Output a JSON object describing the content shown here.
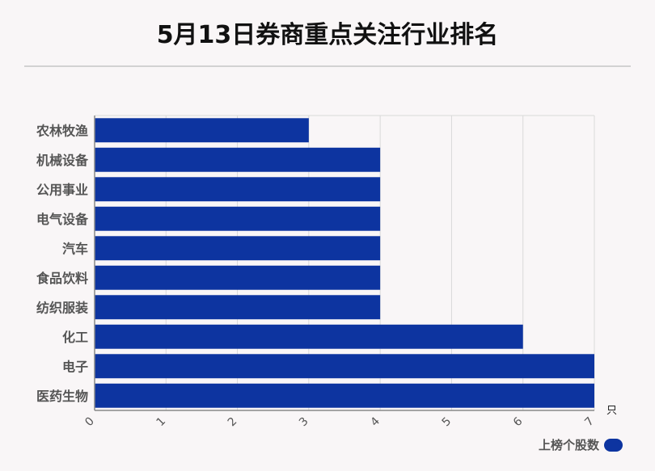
{
  "title": "5月13日券商重点关注行业排名",
  "unit": "只",
  "legend_label": "上榜个股数",
  "colors": {
    "bar": "#0d34a0",
    "grid": "#d9d9d9",
    "axis": "#888888"
  },
  "chart_data": {
    "type": "bar",
    "orientation": "horizontal",
    "title": "5月13日券商重点关注行业排名",
    "categories": [
      "农林牧渔",
      "机械设备",
      "公用事业",
      "电气设备",
      "汽车",
      "食品饮料",
      "纺织服装",
      "化工",
      "电子",
      "医药生物"
    ],
    "series": [
      {
        "name": "上榜个股数",
        "values": [
          3,
          4,
          4,
          4,
          4,
          4,
          4,
          6,
          7,
          7
        ]
      }
    ],
    "xlim": [
      0,
      7
    ],
    "xticks": [
      "0",
      "1",
      "2",
      "3",
      "4",
      "5",
      "6",
      "7"
    ],
    "xunit": "只",
    "grid": true,
    "legend_position": "bottom-right"
  }
}
